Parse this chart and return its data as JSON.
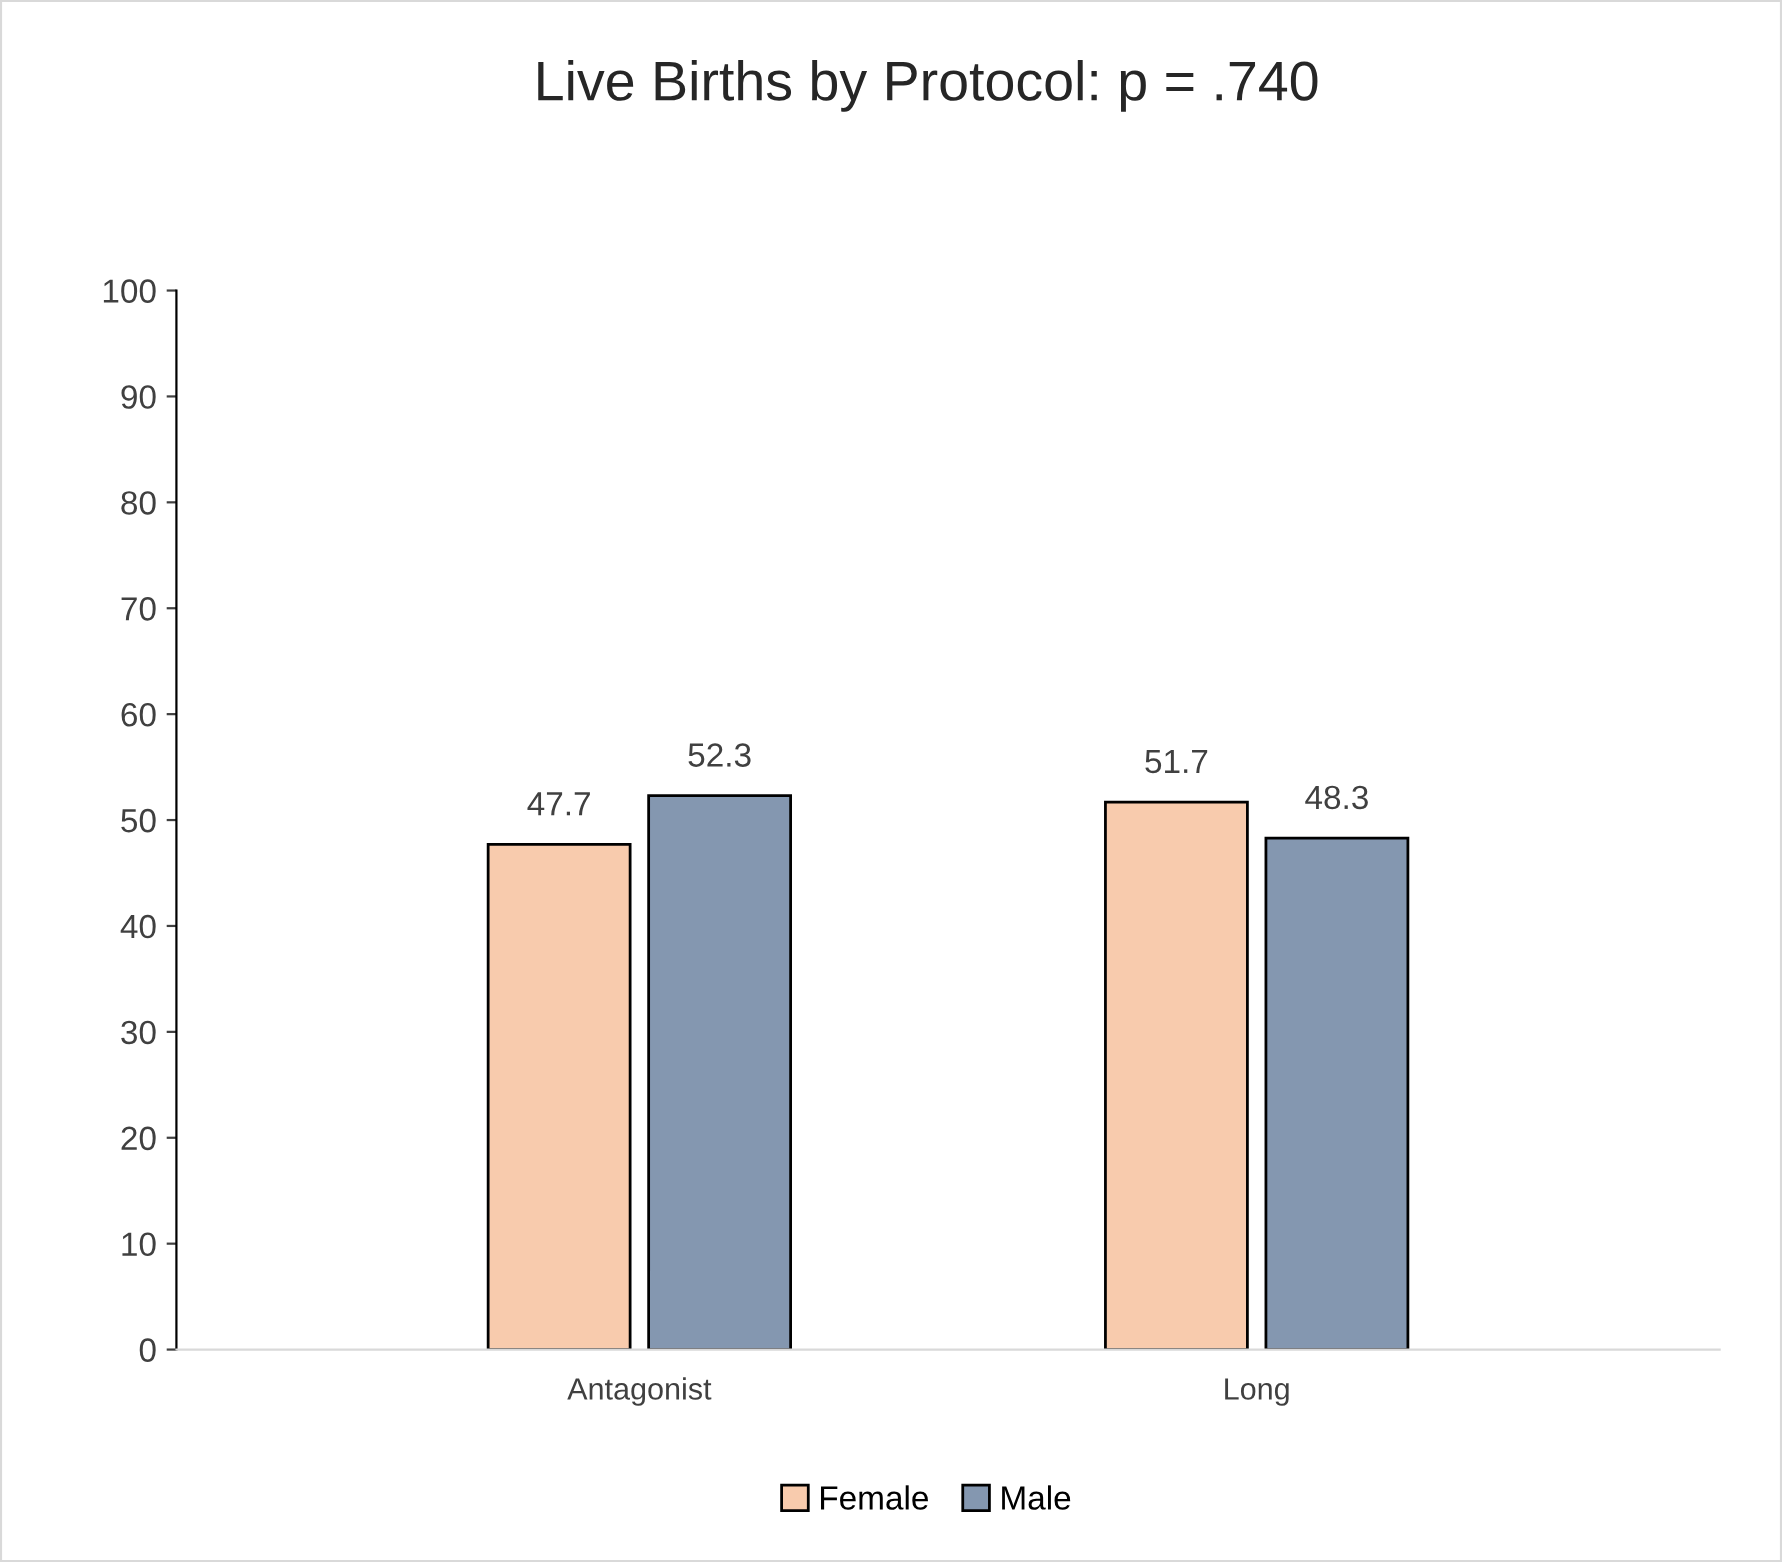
{
  "chart_data": {
    "type": "bar",
    "title": "Live Births by Protocol: p = .740",
    "categories": [
      "Antagonist",
      "Long"
    ],
    "series": [
      {
        "name": "Female",
        "color": "#f8cbad",
        "values": [
          47.7,
          51.7
        ]
      },
      {
        "name": "Male",
        "color": "#8497b0",
        "values": [
          52.3,
          48.3
        ]
      }
    ],
    "ylim": [
      0,
      100
    ],
    "yticks": [
      0,
      10,
      20,
      30,
      40,
      50,
      60,
      70,
      80,
      90,
      100
    ],
    "grid": false,
    "legend": "bottom",
    "data_labels": true
  }
}
